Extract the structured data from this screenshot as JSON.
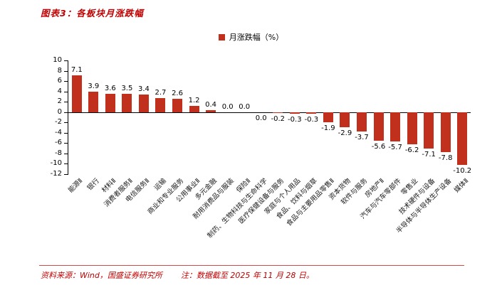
{
  "page": {
    "title": "图表3：各板块月涨跌幅",
    "footer": {
      "source": "资料来源：Wind，国盛证券研究所",
      "note": "注：数据截至 2025 年 11 月 28 日。"
    }
  },
  "colors": {
    "title_red": "#c00000",
    "bar_red": "#c0301c",
    "footer_red": "#c00000",
    "axis_black": "#000000"
  },
  "chart_data": {
    "type": "bar",
    "title": "各板块月涨跌幅",
    "legend": [
      "月涨跌幅（%）"
    ],
    "legend_position": "top-center",
    "grid": false,
    "ylim": [
      -12,
      10
    ],
    "yticks": [
      10,
      8,
      6,
      4,
      2,
      0,
      -2,
      -4,
      -6,
      -8,
      -10,
      -12
    ],
    "categories": [
      "能源Ⅱ",
      "银行",
      "材料Ⅱ",
      "消费者服务Ⅱ",
      "电信服务Ⅱ",
      "运输",
      "商业和专业服务",
      "公用事业Ⅱ",
      "多元金融",
      "耐用消费品与服装",
      "保险Ⅱ",
      "制药、生物科技与生命科学",
      "医疗保健设备与服务",
      "家庭与个人用品",
      "食品、饮料与烟草",
      "食品与主要用品零售Ⅱ",
      "资本货物",
      "软件与服务",
      "房地产Ⅱ",
      "汽车与汽车零部件",
      "零售业",
      "技术硬件与设备",
      "半导体与半导体生产设备",
      "媒体Ⅱ"
    ],
    "values": [
      7.1,
      3.9,
      3.6,
      3.5,
      3.4,
      2.7,
      2.6,
      1.2,
      0.4,
      0.0,
      0.0,
      -0.0,
      -0.2,
      -0.3,
      -0.3,
      -1.9,
      -2.9,
      -3.7,
      -5.6,
      -5.7,
      -6.2,
      -7.1,
      -7.8,
      -10.2
    ]
  }
}
